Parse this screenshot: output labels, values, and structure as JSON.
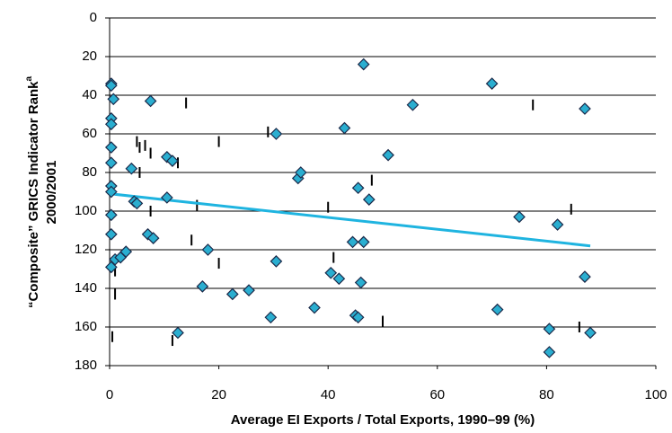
{
  "chart_data": {
    "type": "scatter",
    "x_label": "Average EI Exports / Total Exports, 1990–99 (%)",
    "y_label": "“Composite” GRICS Indicator Rank",
    "y_label_superscript": "a",
    "y_label_line2": "2000/2001",
    "xlim": [
      0,
      100
    ],
    "xticks": [
      0,
      20,
      40,
      60,
      80,
      100
    ],
    "ylim": [
      0,
      180
    ],
    "yticks": [
      0,
      20,
      40,
      60,
      80,
      100,
      120,
      140,
      160,
      180
    ],
    "y_inverted": true,
    "grid": true,
    "series": [
      {
        "marker": "diamond",
        "color": "#2aaed0",
        "x": [
          0.3,
          0.3,
          0.7,
          0.3,
          0.3,
          0.3,
          0.3,
          0.3,
          0.3,
          0.3,
          0.3,
          0.3,
          1,
          2,
          3,
          4,
          4.5,
          5,
          7,
          8,
          7.5,
          10.5,
          11.5,
          10.5,
          12.5,
          17,
          18,
          22.5,
          25.5,
          29.5,
          30.5,
          30.5,
          34.5,
          35,
          37.5,
          40.5,
          42,
          43,
          44.5,
          45,
          45.5,
          45.5,
          46,
          46.5,
          46.5,
          47.5,
          51,
          55.5,
          70,
          71,
          75,
          82,
          80.5,
          80.5,
          87,
          87,
          88
        ],
        "values": [
          34,
          35,
          42,
          52,
          55,
          67,
          75,
          87,
          90,
          102,
          112,
          129,
          125,
          124,
          121,
          78,
          95,
          96,
          112,
          114,
          43,
          72,
          74,
          93,
          163,
          139,
          120,
          143,
          141,
          155,
          60,
          126,
          83,
          80,
          150,
          132,
          135,
          57,
          116,
          154,
          155,
          88,
          137,
          116,
          24,
          94,
          71,
          45,
          34,
          151,
          103,
          107,
          161,
          173,
          47,
          134,
          163
        ]
      },
      {
        "marker": "tick",
        "color": "#000000",
        "x": [
          0.5,
          1,
          1,
          5,
          5.5,
          6.5,
          7.5,
          5.5,
          7.5,
          12.5,
          14,
          15,
          11.5,
          16,
          20,
          20,
          29,
          40,
          41,
          48,
          50,
          77.5,
          84.5,
          86
        ],
        "values": [
          165,
          143,
          131,
          64,
          67,
          66,
          70,
          80,
          100,
          75,
          44,
          115,
          167,
          97,
          64,
          127,
          59,
          98,
          124,
          84,
          157,
          45,
          99,
          160
        ]
      },
      {
        "marker": "line",
        "color": "#1fb4e0",
        "x": [
          0,
          88
        ],
        "values": [
          91,
          118
        ]
      }
    ]
  }
}
